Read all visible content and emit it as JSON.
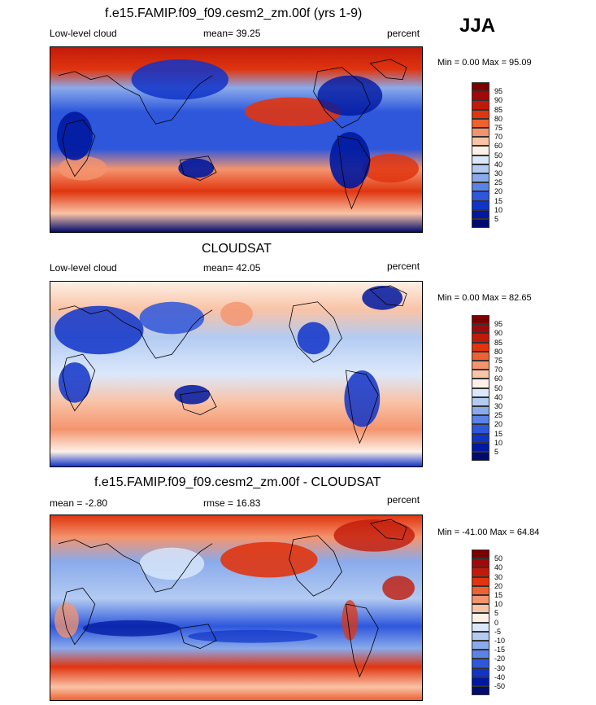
{
  "season": "JJA",
  "panels": [
    {
      "title": "f.e15.FAMIP.f09_f09.cesm2_zm.00f (yrs 1-9)",
      "left_label": "Low-level cloud",
      "stat_label": "mean=  39.25",
      "units": "percent",
      "minmax": "Min =   0.00 Max =  95.09",
      "colorbar_ticks": [
        "95",
        "90",
        "85",
        "80",
        "75",
        "70",
        "60",
        "50",
        "40",
        "30",
        "25",
        "20",
        "15",
        "10",
        "5"
      ]
    },
    {
      "title": "CLOUDSAT",
      "left_label": "Low-level cloud",
      "stat_label": "mean=  42.05",
      "units": "percent",
      "minmax": "Min =   0.00 Max =  82.65",
      "colorbar_ticks": [
        "95",
        "90",
        "85",
        "80",
        "75",
        "70",
        "60",
        "50",
        "40",
        "30",
        "25",
        "20",
        "15",
        "10",
        "5"
      ]
    },
    {
      "title": "f.e15.FAMIP.f09_f09.cesm2_zm.00f - CLOUDSAT",
      "left_label": "mean =  -2.80",
      "stat_label": "rmse =  16.83",
      "units": "percent",
      "minmax": "Min = -41.00 Max =  64.84",
      "colorbar_ticks": [
        "50",
        "40",
        "30",
        "20",
        "15",
        "10",
        "5",
        "0",
        "-5",
        "-10",
        "-15",
        "-20",
        "-30",
        "-40",
        "-50"
      ]
    }
  ],
  "colors": {
    "palette": [
      "#7a0000",
      "#9e0a0a",
      "#c21a0a",
      "#e0350f",
      "#ee6133",
      "#f4946e",
      "#f9c3a6",
      "#fdf0e6",
      "#dbe8fb",
      "#b3cbf2",
      "#8aaaeb",
      "#5b82e6",
      "#2e57dc",
      "#1034c8",
      "#0018a0",
      "#000b6e"
    ]
  }
}
